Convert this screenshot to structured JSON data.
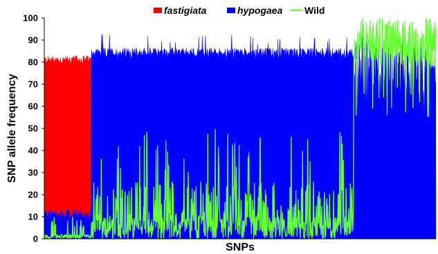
{
  "chart_data": {
    "type": "bar",
    "title": "",
    "xlabel": "SNPs",
    "ylabel": "SNP allele frequency",
    "ylim": [
      0,
      100
    ],
    "yticks": [
      0,
      10,
      20,
      30,
      40,
      50,
      60,
      70,
      80,
      90,
      100
    ],
    "grid": false,
    "legend_position": "top",
    "legend": [
      {
        "name": "fastigiata",
        "color": "#ff0000",
        "style": "swatch",
        "italic": true
      },
      {
        "name": "hypogaea",
        "color": "#0000ff",
        "style": "swatch",
        "italic": true
      },
      {
        "name": "Wild",
        "color": "#66ff33",
        "style": "line",
        "italic": false
      }
    ],
    "x_count": 1000,
    "segments": [
      {
        "from": 0,
        "to": 120,
        "fastigiata": 81,
        "hypogaea_base": 11,
        "wild": 4
      },
      {
        "from": 120,
        "to": 790,
        "fastigiata": 0,
        "hypogaea_base": 84,
        "wild": 15
      },
      {
        "from": 790,
        "to": 1000,
        "fastigiata": 0,
        "hypogaea_base": 70,
        "wild": 85
      }
    ]
  }
}
